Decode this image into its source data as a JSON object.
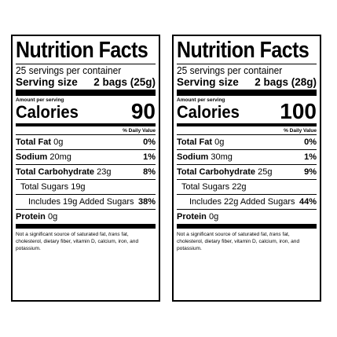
{
  "panels": [
    {
      "title": "Nutrition Facts",
      "servings_per_container": "25 servings per container",
      "serving_size_label": "Serving size",
      "serving_size_value": "2 bags (25g)",
      "amount_per_serving": "Amount per serving",
      "calories_label": "Calories",
      "calories_value": "90",
      "daily_value_header": "% Daily Value",
      "total_fat_label": "Total Fat",
      "total_fat_amount": "0g",
      "total_fat_dv": "0%",
      "sodium_label": "Sodium",
      "sodium_amount": "20mg",
      "sodium_dv": "1%",
      "total_carb_label": "Total Carbohydrate",
      "total_carb_amount": "23g",
      "total_carb_dv": "8%",
      "total_sugars": "Total Sugars 19g",
      "added_sugars": "Includes 19g Added Sugars",
      "added_sugars_dv": "38%",
      "protein_label": "Protein",
      "protein_amount": "0g",
      "footnote_part1": "Not a significant source of saturated fat,",
      "footnote_italic": "trans",
      "footnote_part2": "fat, cholesterol, dietary fiber, vitamin D, calcium, iron, and potassium."
    },
    {
      "title": "Nutrition Facts",
      "servings_per_container": "25 servings per container",
      "serving_size_label": "Serving size",
      "serving_size_value": "2 bags (28g)",
      "amount_per_serving": "Amount per serving",
      "calories_label": "Calories",
      "calories_value": "100",
      "daily_value_header": "% Daily Value",
      "total_fat_label": "Total Fat",
      "total_fat_amount": "0g",
      "total_fat_dv": "0%",
      "sodium_label": "Sodium",
      "sodium_amount": "30mg",
      "sodium_dv": "1%",
      "total_carb_label": "Total Carbohydrate",
      "total_carb_amount": "25g",
      "total_carb_dv": "9%",
      "total_sugars": "Total Sugars 22g",
      "added_sugars": "Includes 22g Added Sugars",
      "added_sugars_dv": "44%",
      "protein_label": "Protein",
      "protein_amount": "0g",
      "footnote_part1": "Not a significant source of saturated fat,",
      "footnote_italic": "trans",
      "footnote_part2": "fat, cholesterol, dietary fiber, vitamin D, calcium, iron, and potassium."
    }
  ]
}
